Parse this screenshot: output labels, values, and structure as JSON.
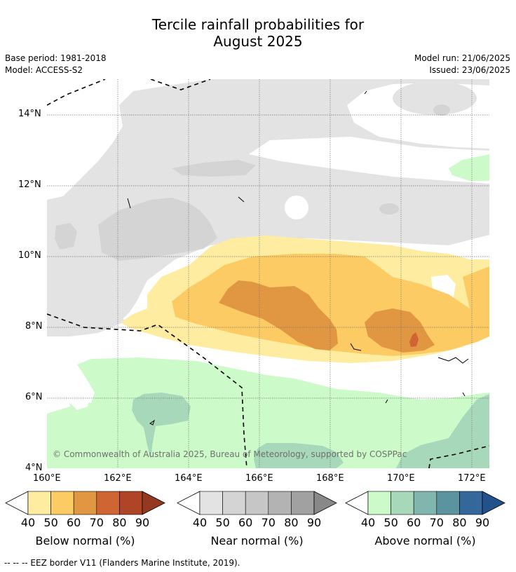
{
  "header": {
    "title_line1": "Tercile rainfall probabilities for",
    "title_line2": "August 2025",
    "base_period": "Base period: 1981-2018",
    "model": "Model: ACCESS-S2",
    "model_run": "Model run: 21/06/2025",
    "issued": "Issued: 23/06/2025"
  },
  "map": {
    "copyright": "© Commonwealth of Australia 2025, Bureau of Meteorology, supported by COSPPac",
    "lat_ticks": [
      "14°N",
      "12°N",
      "10°N",
      "8°N",
      "6°N",
      "4°N"
    ],
    "lon_ticks": [
      "160°E",
      "162°E",
      "164°E",
      "166°E",
      "168°E",
      "170°E",
      "172°E"
    ]
  },
  "legends": [
    {
      "label": "Below normal (%)",
      "ticks": [
        "40",
        "50",
        "60",
        "70",
        "80",
        "90"
      ],
      "colors": [
        "#feeda0",
        "#fdcb63",
        "#e19642",
        "#ce6533",
        "#af4526",
        "#953821"
      ]
    },
    {
      "label": "Near normal (%)",
      "ticks": [
        "40",
        "50",
        "60",
        "70",
        "80",
        "90"
      ],
      "colors": [
        "#e3e3e3",
        "#d4d4d4",
        "#c6c6c6",
        "#b3b3b3",
        "#a1a1a1",
        "#888888"
      ]
    },
    {
      "label": "Above normal (%)",
      "ticks": [
        "40",
        "50",
        "60",
        "70",
        "80",
        "90"
      ],
      "colors": [
        "#ccfbc9",
        "#a6d8b9",
        "#80b6ae",
        "#5b949f",
        "#35689a",
        "#23518c"
      ]
    }
  ],
  "footer": {
    "eez_note": "--  --  -- EEZ border V11 (Flanders Marine Institute, 2019)."
  }
}
